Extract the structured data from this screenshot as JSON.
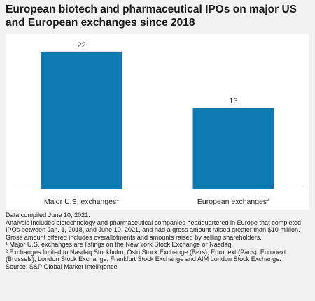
{
  "title": "European biotech and pharmaceutical IPOs on major US and European exchanges since 2018",
  "chart_data": {
    "type": "bar",
    "categories": [
      "Major U.S. exchanges",
      "European exchanges"
    ],
    "category_footnotes": [
      "1",
      "2"
    ],
    "values": [
      22,
      13
    ],
    "value_labels": [
      "22",
      "13"
    ],
    "ylim": [
      0,
      24
    ],
    "bar_color": "#0e7ab3",
    "grid": false
  },
  "notes": {
    "compiled": "Data compiled June 10, 2021.",
    "analysis": "Analysis includes biotechnology and pharmaceutical companies headquartered in Europe that completed IPOs between Jan. 1, 2018, and June 10, 2021, and had a gross amount raised greater than $10 million.",
    "gross": "Gross amount offered includes overallotments and amounts raised by selling shareholders.",
    "footnote1": "¹ Major U.S. exchanges are listings on the New York Stock Exchange or Nasdaq.",
    "footnote2": "² Exchanges limited to Nasdaq Stockholm, Oslo Stock Exchange (Børs), Euronext (Paris), Euronext (Brussels), London Stock Exchange, Frankfurt Stock Exchange and AIM London Stock Exchange.",
    "source": "Source: S&P Global Market Intelligence"
  }
}
